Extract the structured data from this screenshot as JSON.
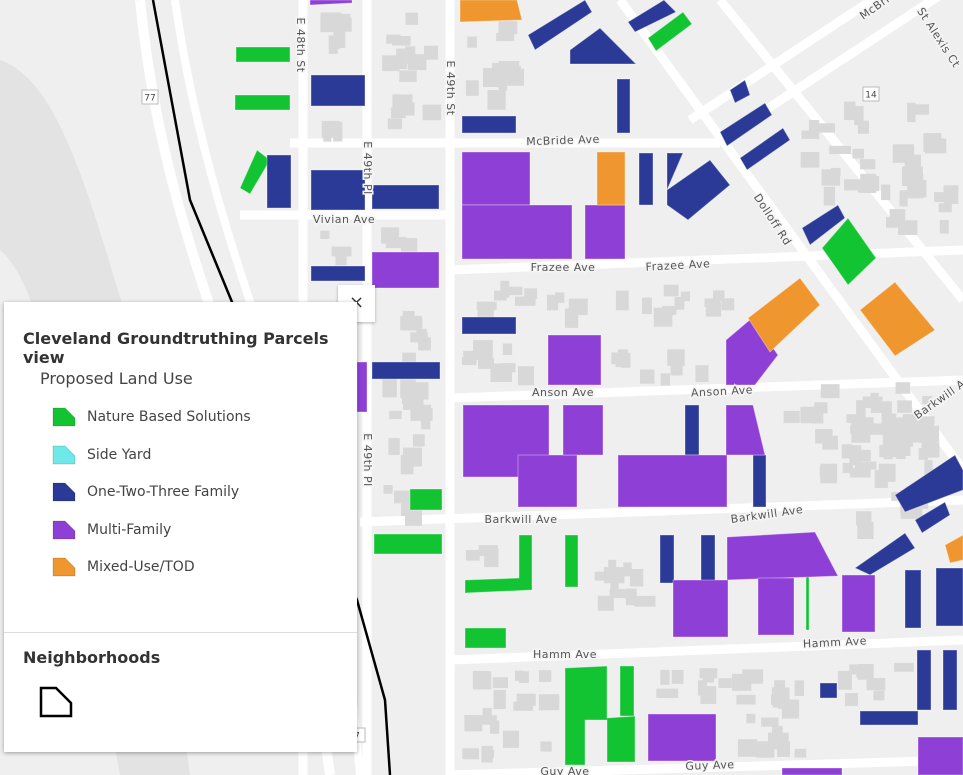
{
  "map": {
    "street_labels": [
      "E 48th St",
      "E 49th St",
      "McBride Ave",
      "Vivian Ave",
      "E 49th Pl",
      "E 49th Pl",
      "Frazee Ave",
      "Frazee Ave",
      "Anson Ave",
      "Anson Ave",
      "Barkwill Ave",
      "Barkwill Ave",
      "Barkwill A",
      "Hamm Ave",
      "Hamm Ave",
      "Guy Ave",
      "Guy Ave",
      "Dolloff Rd",
      "St Alexis Ct",
      "McBri"
    ],
    "route_shields": [
      "77",
      "14",
      "7"
    ]
  },
  "legend": {
    "title": "Cleveland Groundtruthing Parcels view",
    "close": "×",
    "land_use": {
      "title": "Proposed Land Use",
      "items": [
        {
          "label": "Nature Based Solutions",
          "color": "#12c432"
        },
        {
          "label": "Side Yard",
          "color": "#6ee8e8"
        },
        {
          "label": "One-Two-Three Family",
          "color": "#2b3a96"
        },
        {
          "label": "Multi-Family",
          "color": "#8e3fd6"
        },
        {
          "label": "Mixed-Use/TOD",
          "color": "#f0962e"
        }
      ]
    },
    "neighborhoods": {
      "title": "Neighborhoods"
    }
  }
}
